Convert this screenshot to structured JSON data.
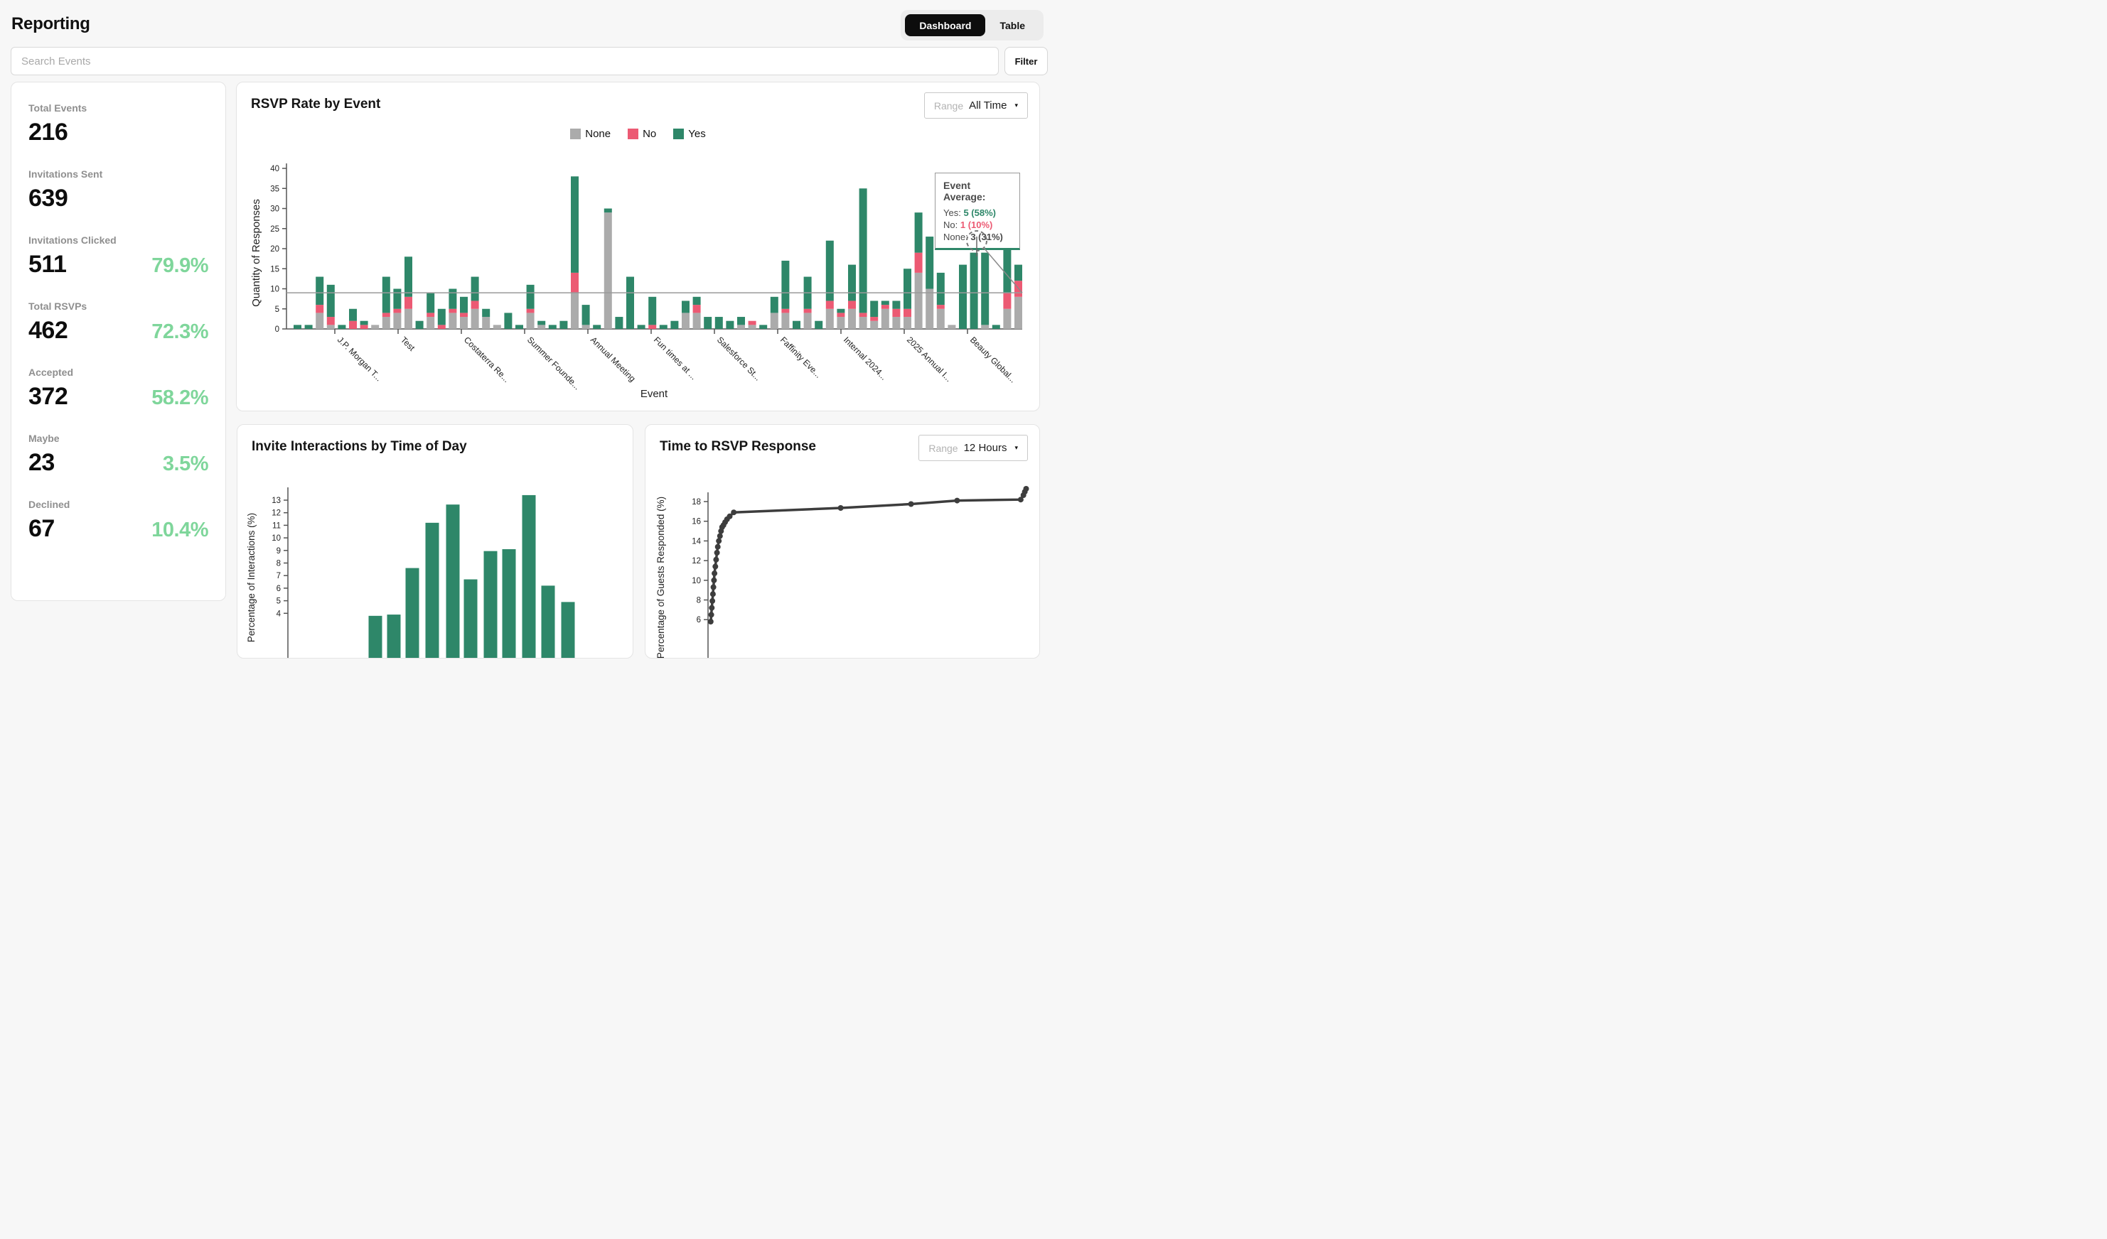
{
  "page": {
    "background": "#f7f7f7"
  },
  "header": {
    "title": "Reporting",
    "view_toggle": {
      "options": [
        "Dashboard",
        "Table"
      ],
      "selected": "Dashboard"
    }
  },
  "search": {
    "placeholder": "Search Events",
    "filter_label": "Filter"
  },
  "sidebar": {
    "stats": [
      {
        "label": "Total Events",
        "value": "216",
        "percent": ""
      },
      {
        "label": "Invitations Sent",
        "value": "639",
        "percent": ""
      },
      {
        "label": "Invitations Clicked",
        "value": "511",
        "percent": "79.9%"
      },
      {
        "label": "Total RSVPs",
        "value": "462",
        "percent": "72.3%"
      },
      {
        "label": "Accepted",
        "value": "372",
        "percent": "58.2%"
      },
      {
        "label": "Maybe",
        "value": "23",
        "percent": "3.5%"
      },
      {
        "label": "Declined",
        "value": "67",
        "percent": "10.4%"
      }
    ]
  },
  "colors": {
    "yes": "#2e8769",
    "no": "#ec5a73",
    "none": "#ababab",
    "accent_green": "#7fd69b",
    "average_line": "#9a9a9a",
    "line_series": "#3d3d3d",
    "axis": "#555555",
    "tick_text": "#222222"
  },
  "rsvp_chart": {
    "title": "RSVP Rate by Event",
    "range_label": "Range",
    "range_value": "All Time",
    "caret": "▾",
    "legend": [
      {
        "label": "None",
        "color_key": "none"
      },
      {
        "label": "No",
        "color_key": "no"
      },
      {
        "label": "Yes",
        "color_key": "yes"
      }
    ],
    "tooltip": {
      "title": "Event Average:",
      "rows": [
        {
          "label": "Yes:",
          "value": "5 (58%)"
        },
        {
          "label": "No:",
          "value": "1 (10%)"
        },
        {
          "label": "None:",
          "value": "3 (31%)"
        }
      ]
    }
  },
  "interactions_chart": {
    "title": "Invite Interactions by Time of Day"
  },
  "response_chart": {
    "title": "Time to RSVP Response",
    "range_label": "Range",
    "range_value": "12 Hours",
    "caret": "▾"
  },
  "chart_data": [
    {
      "id": "rsvp_by_event",
      "type": "bar",
      "stacked": true,
      "title": "RSVP Rate by Event",
      "xlabel": "Event",
      "ylabel": "Quantity of Responses",
      "ylim": [
        0,
        40
      ],
      "y_ticks": [
        0,
        5,
        10,
        15,
        20,
        25,
        30,
        35,
        40
      ],
      "average_line": 9,
      "legend_position": "top",
      "x_tick_labels": [
        "J.P. Morgan T...",
        "Test",
        "Costaterra Re...",
        "Summer Founde...",
        "Annual Meeting",
        "Fun times at ...",
        "Salesforce St...",
        "Faffinity Eve...",
        "Internal 2024...",
        "2025 Annual I...",
        "Beauty Global..."
      ],
      "series": [
        {
          "name": "None",
          "values": [
            0,
            0,
            4,
            1,
            0,
            0,
            0,
            1,
            3,
            4,
            5,
            0,
            3,
            0,
            4,
            3,
            5,
            3,
            1,
            0,
            0,
            4,
            1,
            0,
            0,
            9,
            1,
            0,
            29,
            0,
            0,
            0,
            0,
            0,
            0,
            4,
            4,
            0,
            0,
            0,
            1,
            1,
            0,
            4,
            4,
            0,
            4,
            0,
            5,
            3,
            5,
            3,
            2,
            5,
            3,
            3,
            14,
            10,
            5,
            1,
            0,
            0,
            1,
            0,
            5,
            8
          ]
        },
        {
          "name": "No",
          "values": [
            0,
            0,
            2,
            2,
            0,
            2,
            1,
            0,
            1,
            1,
            3,
            0,
            1,
            1,
            1,
            1,
            2,
            0,
            0,
            0,
            0,
            1,
            0,
            0,
            0,
            5,
            0,
            0,
            0,
            0,
            0,
            0,
            1,
            0,
            0,
            0,
            2,
            0,
            0,
            0,
            0,
            1,
            0,
            0,
            1,
            0,
            1,
            0,
            2,
            1,
            2,
            1,
            1,
            1,
            2,
            2,
            5,
            0,
            1,
            0,
            0,
            0,
            0,
            0,
            4,
            4
          ]
        },
        {
          "name": "Yes",
          "values": [
            1,
            1,
            7,
            8,
            1,
            3,
            1,
            0,
            9,
            5,
            10,
            2,
            5,
            4,
            5,
            4,
            6,
            2,
            0,
            4,
            1,
            6,
            1,
            1,
            2,
            24,
            5,
            1,
            1,
            3,
            13,
            1,
            7,
            1,
            2,
            3,
            2,
            3,
            3,
            2,
            2,
            0,
            1,
            4,
            12,
            2,
            8,
            2,
            15,
            1,
            9,
            31,
            4,
            1,
            2,
            10,
            10,
            13,
            8,
            0,
            16,
            19,
            18,
            1,
            12,
            4
          ]
        }
      ]
    },
    {
      "id": "invite_interactions_by_time_of_day",
      "type": "bar",
      "title": "Invite Interactions by Time of Day",
      "xlabel": "",
      "ylabel": "Percentage of Interactions (%)",
      "y_ticks_visible": [
        4,
        5,
        6,
        7,
        8,
        9,
        10,
        11,
        12,
        13
      ],
      "values": [
        3.8,
        3.9,
        7.6,
        11.2,
        12.65,
        6.7,
        8.95,
        9.1,
        13.4,
        6.2,
        4.9
      ]
    },
    {
      "id": "time_to_rsvp_response",
      "type": "line",
      "title": "Time to RSVP Response",
      "xlabel": "",
      "ylabel": "Percentage of Guests Responded (%)",
      "x_range_hours": [
        0,
        12
      ],
      "y_ticks_visible": [
        6,
        8,
        10,
        12,
        14,
        16,
        18
      ],
      "x_hours": [
        0.1,
        0.12,
        0.14,
        0.16,
        0.18,
        0.2,
        0.22,
        0.24,
        0.27,
        0.3,
        0.33,
        0.36,
        0.4,
        0.44,
        0.48,
        0.52,
        0.57,
        0.63,
        0.7,
        0.8,
        0.95,
        4.9,
        7.5,
        9.2,
        11.55,
        11.65,
        11.7,
        11.75
      ],
      "y_percent": [
        5.8,
        6.5,
        7.2,
        7.9,
        8.6,
        9.3,
        10.0,
        10.7,
        11.4,
        12.1,
        12.8,
        13.4,
        14.0,
        14.5,
        15.0,
        15.4,
        15.6,
        15.9,
        16.2,
        16.5,
        16.9,
        17.35,
        17.75,
        18.1,
        18.2,
        18.65,
        19.0,
        19.3
      ]
    }
  ]
}
